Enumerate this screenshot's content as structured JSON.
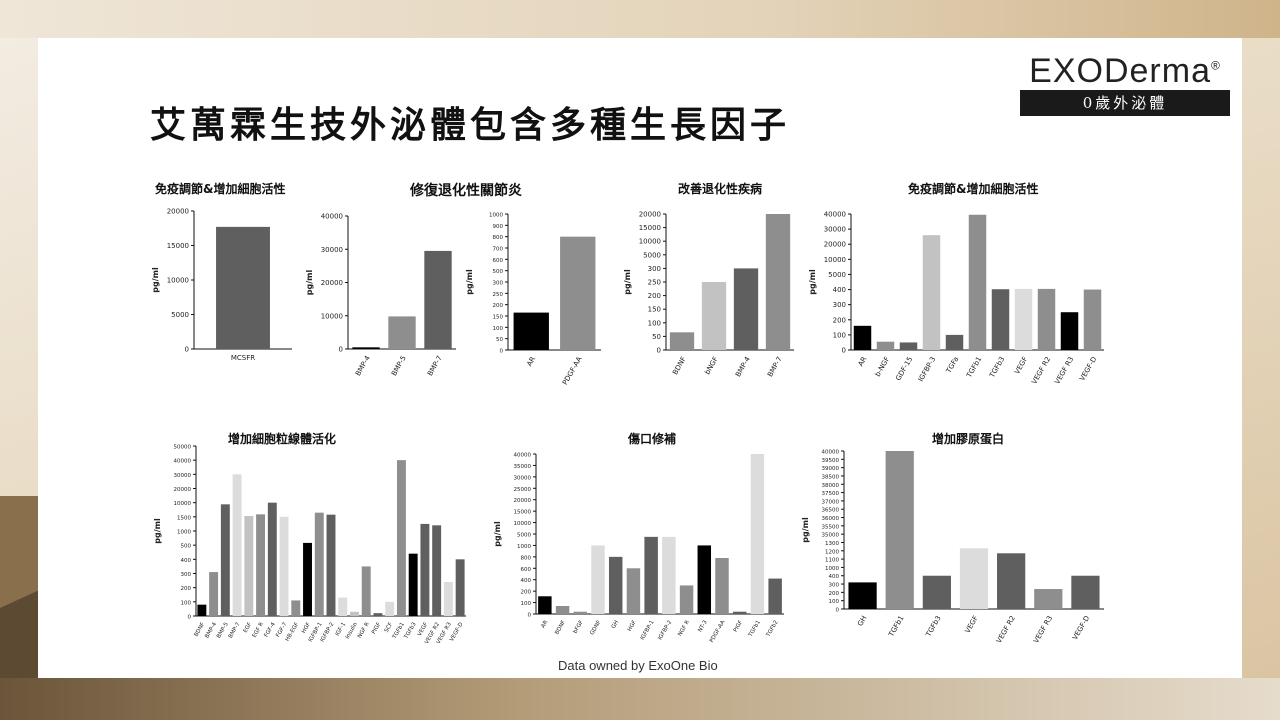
{
  "slide": {
    "title": "艾萬霖生技外泌體包含多種生長因子",
    "logo": {
      "brand": "EXODerma",
      "registered": "®",
      "tagline": "0歲外泌體"
    },
    "footer": "Data owned by ExoOne Bio"
  },
  "panels": {
    "p1": "免疫調節&增加細胞活性",
    "p2": "修復退化性關節炎",
    "p3": "改善退化性疾病",
    "p4": "免疫調節&增加細胞活性",
    "p5": "增加細胞粒線體活化",
    "p6": "傷口修補",
    "p7": "增加膠原蛋白"
  },
  "colors": {
    "black": "#000000",
    "dark": "#5f5f5f",
    "mid": "#8e8e8e",
    "light": "#c2c2c2",
    "pale": "#dcdcdc"
  },
  "chart_data": [
    {
      "id": "c1",
      "type": "bar",
      "ylabel": "pg/ml",
      "categories": [
        "MCSFR"
      ],
      "values": [
        17700
      ],
      "yticks": [
        "0",
        "5000",
        "10000",
        "15000",
        "20000"
      ],
      "colors": [
        "dark"
      ]
    },
    {
      "id": "c2",
      "type": "bar",
      "ylabel": "pg/ml",
      "categories": [
        "BMP-4",
        "BMP-5",
        "BMP-7"
      ],
      "values": [
        500,
        9800,
        29500
      ],
      "yticks": [
        "0",
        "10000",
        "20000",
        "30000",
        "40000"
      ],
      "colors": [
        "black",
        "mid",
        "dark"
      ]
    },
    {
      "id": "c3",
      "type": "bar",
      "ylabel": "pg/ml",
      "categories": [
        "AR",
        "PDGF-AA"
      ],
      "values": [
        165,
        800
      ],
      "yticks": [
        "0",
        "50",
        "100",
        "150",
        "200",
        "250",
        "300",
        "500",
        "600",
        "700",
        "800",
        "900",
        "1000"
      ],
      "colors": [
        "black",
        "mid"
      ]
    },
    {
      "id": "c4",
      "type": "bar",
      "ylabel": "pg/ml",
      "categories": [
        "BDNF",
        "bNGF",
        "BMP-4",
        "BMP-7"
      ],
      "values": [
        65,
        250,
        300,
        20000
      ],
      "yticks": [
        "0",
        "50",
        "100",
        "150",
        "200",
        "250",
        "300",
        "5000",
        "10000",
        "15000",
        "20000"
      ],
      "colors": [
        "mid",
        "light",
        "dark",
        "mid"
      ]
    },
    {
      "id": "c5",
      "type": "bar",
      "ylabel": "pg/ml",
      "categories": [
        "AR",
        "b-NGF",
        "GDF-15",
        "IGFBP-3",
        "TGFa",
        "TGFb1",
        "TGFb3",
        "VEGF",
        "VEGF R2",
        "VEGF R3",
        "VEGF-D"
      ],
      "values": [
        160,
        55,
        50,
        26000,
        100,
        39500,
        500,
        600,
        600,
        250,
        400
      ],
      "yticks": [
        "0",
        "100",
        "200",
        "300",
        "400",
        "5000",
        "10000",
        "20000",
        "30000",
        "40000"
      ],
      "colors": [
        "black",
        "mid",
        "dark",
        "light",
        "dark",
        "mid",
        "dark",
        "pale",
        "mid",
        "black",
        "mid"
      ]
    },
    {
      "id": "c6",
      "type": "bar",
      "ylabel": "pg/ml",
      "categories": [
        "BDNF",
        "BMP-4",
        "BMP-5",
        "BMP-7",
        "EGF",
        "EGF R",
        "FGF-4",
        "FGF-7",
        "HB-EGF",
        "HGF",
        "IGFBP-1",
        "IGFBP-2",
        "IGF-1",
        "Insulin",
        "NGF R",
        "PIGF",
        "SCF",
        "TGFb1",
        "TGFb3",
        "VEGF",
        "VEGF R2",
        "VEGF R3",
        "VEGF-D"
      ],
      "values": [
        80,
        310,
        9000,
        30000,
        2000,
        3000,
        10000,
        1500,
        110,
        580,
        4000,
        2800,
        130,
        30,
        350,
        20,
        100,
        40000,
        440,
        1250,
        1200,
        240,
        400
      ],
      "yticks": [
        "0",
        "100",
        "200",
        "300",
        "400",
        "500",
        "1000",
        "1500",
        "10000",
        "20000",
        "30000",
        "40000",
        "50000"
      ],
      "colors": [
        "black",
        "mid",
        "dark",
        "pale",
        "light",
        "mid",
        "dark",
        "pale",
        "mid",
        "black",
        "mid",
        "dark",
        "pale",
        "light",
        "mid",
        "dark",
        "pale",
        "mid",
        "black",
        "dark",
        "dark",
        "pale",
        "dark"
      ]
    },
    {
      "id": "c7",
      "type": "bar",
      "ylabel": "pg/ml",
      "categories": [
        "AR",
        "BDNF",
        "bFGF",
        "GDNF",
        "GH",
        "HGF",
        "IGFBP-1",
        "IGFBP-2",
        "NGF R",
        "NT-3",
        "PDGF-AA",
        "PIGF",
        "TGFb1",
        "TGFb2"
      ],
      "values": [
        155,
        70,
        20,
        1000,
        800,
        600,
        4000,
        4000,
        300,
        1000,
        780,
        20,
        40000,
        420
      ],
      "yticks": [
        "0",
        "100",
        "200",
        "400",
        "600",
        "800",
        "1000",
        "5000",
        "10000",
        "15000",
        "20000",
        "25000",
        "30000",
        "35000",
        "40000"
      ],
      "colors": [
        "black",
        "mid",
        "mid",
        "pale",
        "dark",
        "mid",
        "dark",
        "pale",
        "mid",
        "black",
        "mid",
        "dark",
        "pale",
        "dark"
      ]
    },
    {
      "id": "c8",
      "type": "bar",
      "ylabel": "pg/ml",
      "categories": [
        "GH",
        "TGFb1",
        "TGFb3",
        "VEGF",
        "VEGF R2",
        "VEGF R3",
        "VEGF-D"
      ],
      "values": [
        320,
        40000,
        400,
        1230,
        1170,
        240,
        400
      ],
      "yticks": [
        "0",
        "100",
        "200",
        "300",
        "400",
        "1000",
        "1100",
        "1200",
        "1300",
        "35000",
        "35500",
        "36000",
        "36500",
        "37000",
        "37500",
        "38000",
        "38500",
        "39000",
        "39500",
        "40000"
      ],
      "colors": [
        "black",
        "mid",
        "dark",
        "pale",
        "dark",
        "mid",
        "dark"
      ]
    }
  ]
}
